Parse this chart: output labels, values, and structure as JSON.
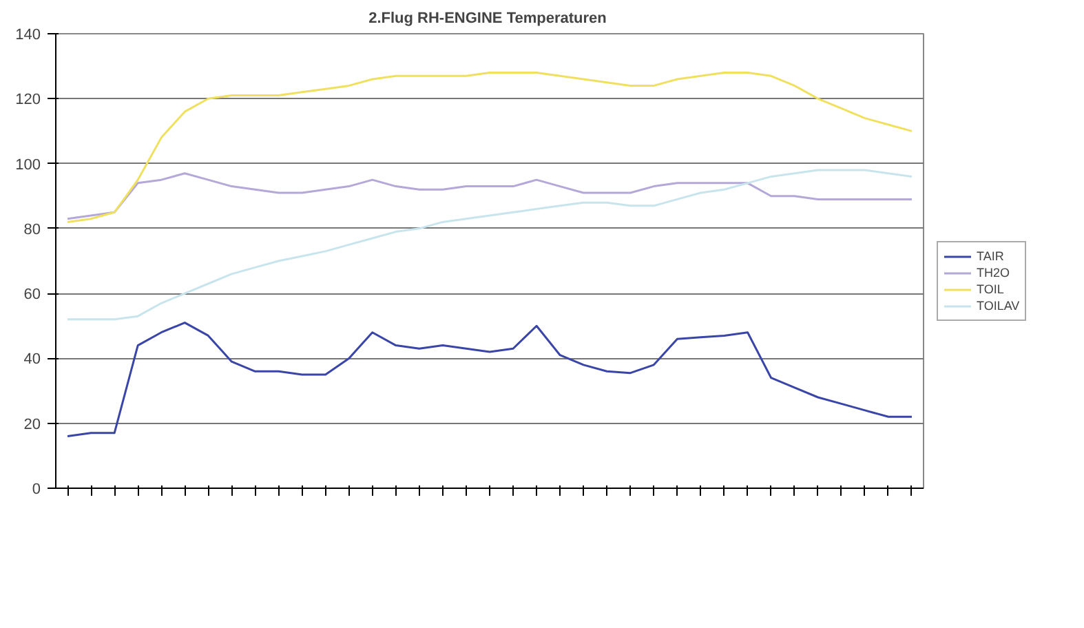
{
  "chart_data": {
    "type": "line",
    "title": "2.Flug  RH-ENGINE Temperaturen",
    "categories": [
      null,
      null,
      null,
      null,
      null,
      null,
      null,
      null,
      null,
      null,
      null,
      null,
      null,
      null,
      null,
      null,
      null,
      null,
      null,
      null,
      null,
      null,
      null,
      null,
      null,
      null,
      null,
      null,
      null,
      null,
      null,
      null,
      null,
      null,
      null,
      null,
      null
    ],
    "series": [
      {
        "name": "TAIR",
        "color": "#3a45a8",
        "values": [
          16,
          17,
          17,
          44,
          48,
          51,
          47,
          39,
          36,
          36,
          35,
          35,
          40,
          48,
          44,
          43,
          44,
          43,
          42,
          43,
          50,
          41,
          38,
          36,
          35.5,
          38,
          46,
          46.5,
          47,
          48,
          34,
          31,
          28,
          26,
          24,
          22,
          22
        ]
      },
      {
        "name": "TH2O",
        "color": "#b4a8d8",
        "values": [
          83,
          84,
          85,
          94,
          95,
          97,
          95,
          93,
          92,
          91,
          91,
          92,
          93,
          95,
          93,
          92,
          92,
          93,
          93,
          93,
          95,
          93,
          91,
          91,
          91,
          93,
          94,
          94,
          94,
          94,
          90,
          90,
          89,
          89,
          89,
          89,
          89
        ]
      },
      {
        "name": "TOIL",
        "color": "#f0e060",
        "values": [
          82,
          83,
          85,
          95,
          108,
          116,
          120,
          121,
          121,
          121,
          122,
          123,
          124,
          126,
          127,
          127,
          127,
          127,
          128,
          128,
          128,
          127,
          126,
          125,
          124,
          124,
          126,
          127,
          128,
          128,
          127,
          124,
          120,
          117,
          114,
          112,
          110
        ]
      },
      {
        "name": "TOILAV",
        "color": "#c8e4ec",
        "values": [
          52,
          52,
          52,
          53,
          57,
          60,
          63,
          66,
          68,
          70,
          71.5,
          73,
          75,
          77,
          79,
          80,
          82,
          83,
          84,
          85,
          86,
          87,
          88,
          88,
          87,
          87,
          89,
          91,
          92,
          94,
          96,
          97,
          98,
          98,
          98,
          97,
          96
        ]
      }
    ],
    "ylim": [
      0,
      140
    ],
    "yticks": [
      0,
      20,
      40,
      60,
      80,
      100,
      120,
      140
    ],
    "grid": "y",
    "legend": "right",
    "tick_labels": "y",
    "marker": "none",
    "line_style": "solid"
  }
}
